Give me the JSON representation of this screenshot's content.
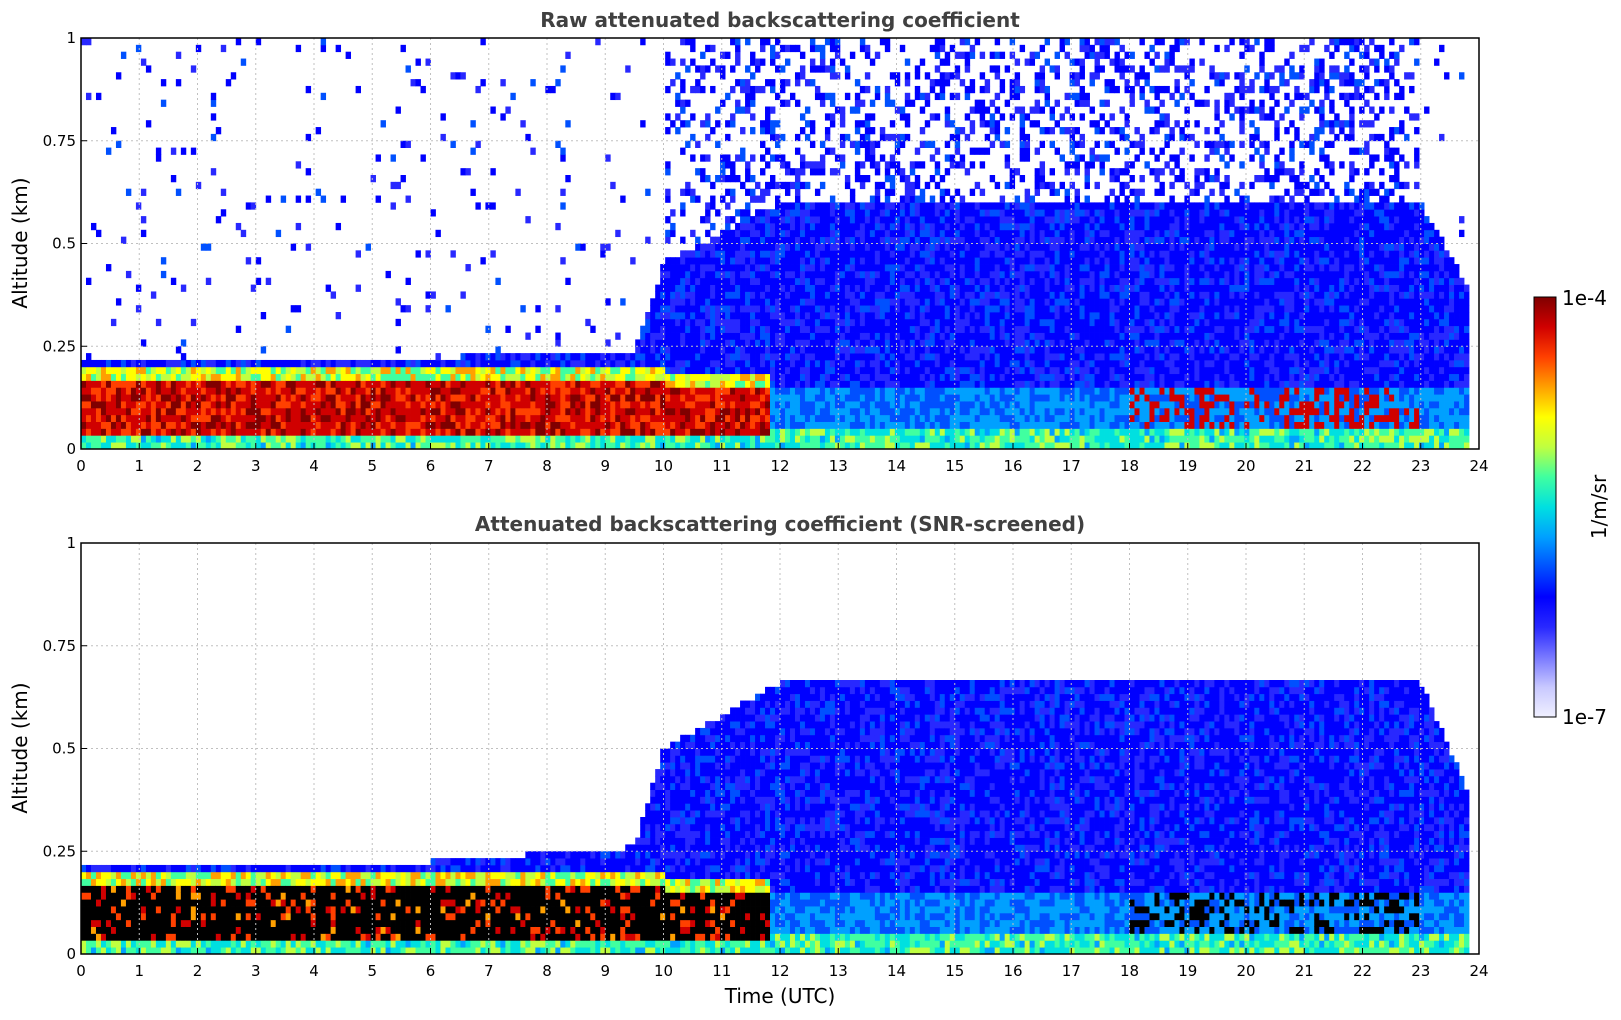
{
  "colors": {
    "colormap": [
      "#f0f0ff",
      "#c8c8ff",
      "#7878ff",
      "#2828ff",
      "#0000ff",
      "#0050ff",
      "#00a0ff",
      "#00e0e0",
      "#40ffa0",
      "#c0ff40",
      "#ffff00",
      "#ffa000",
      "#ff4000",
      "#d00000",
      "#800000"
    ],
    "below_snr": "#000000",
    "axes": "#000000",
    "grid": "#c0c0c0",
    "title": "#404040"
  },
  "colorbar": {
    "label": "1/m/sr",
    "max_label": "1e-4",
    "min_label": "1e-7",
    "scale": "log"
  },
  "chart_data": [
    {
      "type": "heatmap",
      "title": "Raw attenuated backscattering coefficient",
      "xlabel": "",
      "ylabel": "Altitude (km)",
      "xlim": [
        0,
        24
      ],
      "ylim": [
        0,
        1
      ],
      "xticks": [
        "0",
        "1",
        "2",
        "3",
        "4",
        "5",
        "6",
        "7",
        "8",
        "9",
        "10",
        "11",
        "12",
        "13",
        "14",
        "15",
        "16",
        "17",
        "18",
        "19",
        "20",
        "21",
        "22",
        "23",
        "24"
      ],
      "yticks": [
        "0",
        "0.25",
        "0.5",
        "0.75",
        "1"
      ],
      "grid": true,
      "data_gap_after": 23.8,
      "structure": {
        "boundary_layer_top_km": [
          [
            0,
            0.22
          ],
          [
            5.5,
            0.22
          ],
          [
            9.5,
            0.24
          ],
          [
            10,
            0.45
          ],
          [
            12,
            0.6
          ],
          [
            18,
            0.6
          ],
          [
            23,
            0.6
          ],
          [
            23.8,
            0.4
          ]
        ],
        "dense_aerosol_layer_km": [
          [
            0,
            0.05,
            0.17
          ],
          [
            10,
            0.05,
            0.17
          ],
          [
            11.8,
            0.05,
            0.14
          ]
        ],
        "noise_region_top_km": 1.0
      }
    },
    {
      "type": "heatmap",
      "title": "Attenuated backscattering coefficient (SNR-screened)",
      "xlabel": "Time (UTC)",
      "ylabel": "Altitude (km)",
      "xlim": [
        0,
        24
      ],
      "ylim": [
        0,
        1
      ],
      "xticks": [
        "0",
        "1",
        "2",
        "3",
        "4",
        "5",
        "6",
        "7",
        "8",
        "9",
        "10",
        "11",
        "12",
        "13",
        "14",
        "15",
        "16",
        "17",
        "18",
        "19",
        "20",
        "21",
        "22",
        "23",
        "24"
      ],
      "yticks": [
        "0",
        "0.25",
        "0.5",
        "0.75",
        "1"
      ],
      "grid": true,
      "data_gap_after": 23.8,
      "structure": {
        "boundary_layer_top_km": [
          [
            0,
            0.22
          ],
          [
            5.5,
            0.22
          ],
          [
            9.5,
            0.26
          ],
          [
            10,
            0.5
          ],
          [
            12,
            0.66
          ],
          [
            23,
            0.66
          ],
          [
            23.8,
            0.4
          ]
        ],
        "screened_dense_layer_km": [
          [
            0,
            0.02,
            0.16
          ],
          [
            10.5,
            0.02,
            0.17
          ],
          [
            11.8,
            0.08,
            0.16
          ]
        ]
      }
    }
  ]
}
